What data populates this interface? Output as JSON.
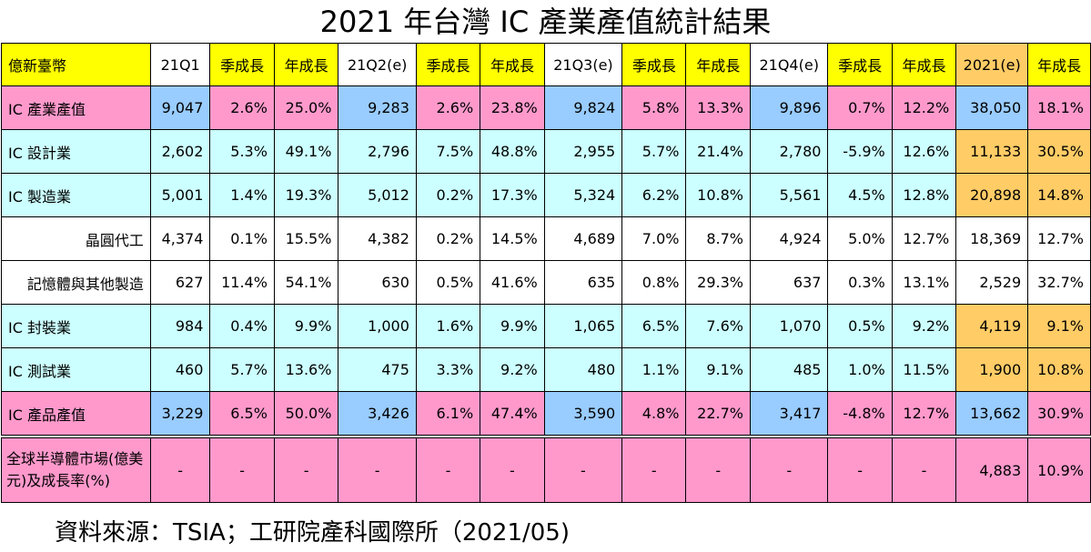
{
  "title": "2021 年台灣 IC 產業產值統計結果",
  "source": "資料來源：TSIA；工研院產科國際所（2021/05)",
  "header": [
    "億新臺幣",
    "21Q1",
    "季成長",
    "年成長",
    "21Q2(e)",
    "季成長",
    "年成長",
    "21Q3(e)",
    "季成長",
    "年成長",
    "21Q4(e)",
    "季成長",
    "年成長",
    "2021(e)",
    "年成長"
  ],
  "rows": [
    {
      "label": "IC 產業產值",
      "cells": [
        "9,047",
        "2.6%",
        "25.0%",
        "9,283",
        "2.6%",
        "23.8%",
        "9,824",
        "5.8%",
        "13.3%",
        "9,896",
        "0.7%",
        "12.2%",
        "38,050",
        "18.1%"
      ]
    },
    {
      "label": "IC 設計業",
      "cells": [
        "2,602",
        "5.3%",
        "49.1%",
        "2,796",
        "7.5%",
        "48.8%",
        "2,955",
        "5.7%",
        "21.4%",
        "2,780",
        "-5.9%",
        "12.6%",
        "11,133",
        "30.5%"
      ]
    },
    {
      "label": "IC 製造業",
      "cells": [
        "5,001",
        "1.4%",
        "19.3%",
        "5,012",
        "0.2%",
        "17.3%",
        "5,324",
        "6.2%",
        "10.8%",
        "5,561",
        "4.5%",
        "12.8%",
        "20,898",
        "14.8%"
      ]
    },
    {
      "label": "晶圓代工",
      "cells": [
        "4,374",
        "0.1%",
        "15.5%",
        "4,382",
        "0.2%",
        "14.5%",
        "4,689",
        "7.0%",
        "8.7%",
        "4,924",
        "5.0%",
        "12.7%",
        "18,369",
        "12.7%"
      ]
    },
    {
      "label": "記憶體與其他製造",
      "cells": [
        "627",
        "11.4%",
        "54.1%",
        "630",
        "0.5%",
        "41.6%",
        "635",
        "0.8%",
        "29.3%",
        "637",
        "0.3%",
        "13.1%",
        "2,529",
        "32.7%"
      ]
    },
    {
      "label": "IC 封裝業",
      "cells": [
        "984",
        "0.4%",
        "9.9%",
        "1,000",
        "1.6%",
        "9.9%",
        "1,065",
        "6.5%",
        "7.6%",
        "1,070",
        "0.5%",
        "9.2%",
        "4,119",
        "9.1%"
      ]
    },
    {
      "label": "IC 測試業",
      "cells": [
        "460",
        "5.7%",
        "13.6%",
        "475",
        "3.3%",
        "9.2%",
        "480",
        "1.1%",
        "9.1%",
        "485",
        "1.0%",
        "11.5%",
        "1,900",
        "10.8%"
      ]
    },
    {
      "label": "IC 產品產值",
      "cells": [
        "3,229",
        "6.5%",
        "50.0%",
        "3,426",
        "6.1%",
        "47.4%",
        "3,590",
        "4.8%",
        "22.7%",
        "3,417",
        "-4.8%",
        "12.7%",
        "13,662",
        "30.9%"
      ]
    },
    {
      "label": "全球半導體市場(億美元)及成長率(%)",
      "cells": [
        "-",
        "-",
        "-",
        "-",
        "-",
        "-",
        "-",
        "-",
        "-",
        "-",
        "-",
        "-",
        "4,883",
        "10.9%"
      ]
    }
  ],
  "colors": {
    "yellow": "#ffff00",
    "pink": "#ff99cc",
    "blue": "#99ccff",
    "cyan": "#ccffff",
    "orange": "#ffcc66",
    "white": "#ffffff"
  }
}
